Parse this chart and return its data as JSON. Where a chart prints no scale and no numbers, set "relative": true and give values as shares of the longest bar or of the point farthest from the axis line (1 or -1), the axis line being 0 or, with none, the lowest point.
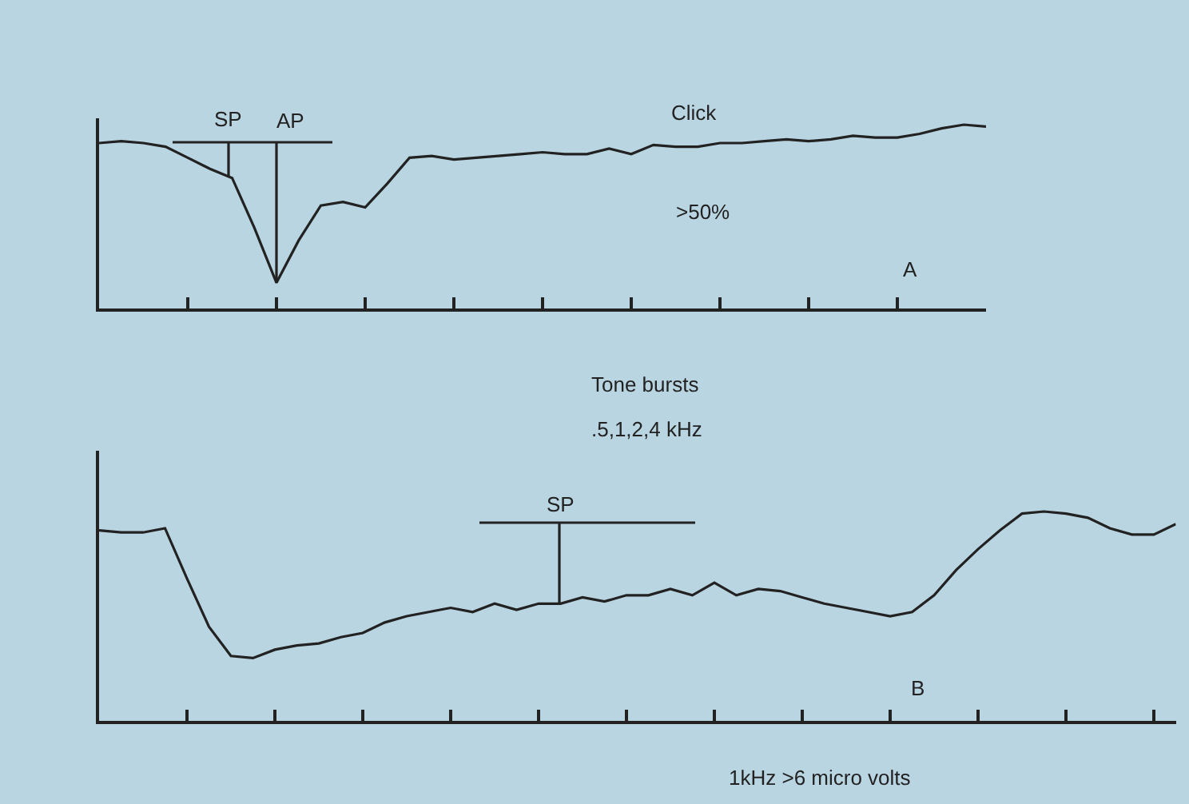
{
  "chart_data": [
    {
      "type": "line",
      "relative": true,
      "categories": [
        null,
        null,
        null,
        null,
        null,
        null,
        null,
        null,
        null,
        null,
        null,
        null,
        null,
        null,
        null,
        null,
        null,
        null,
        null,
        null,
        null,
        null,
        null,
        null,
        null,
        null,
        null,
        null,
        null,
        null,
        null,
        null,
        null,
        null,
        null,
        null,
        null,
        null,
        null,
        null,
        null
      ],
      "series": [
        {
          "color": "#222222",
          "values": [
            0.9,
            0.91,
            0.9,
            0.88,
            0.82,
            0.76,
            0.71,
            0.44,
            0.14,
            0.37,
            0.56,
            0.58,
            0.55,
            0.68,
            0.82,
            0.83,
            0.81,
            0.82,
            0.83,
            0.84,
            0.85,
            0.84,
            0.84,
            0.87,
            0.84,
            0.89,
            0.88,
            0.88,
            0.9,
            0.9,
            0.91,
            0.92,
            0.91,
            0.92,
            0.94,
            0.93,
            0.93,
            0.95,
            0.98,
            1.0,
            0.99
          ]
        }
      ],
      "annotations": [
        "SP",
        "AP",
        "Click",
        ">50%",
        "A"
      ],
      "grid": false
    },
    {
      "type": "line",
      "relative": true,
      "title": "Tone bursts",
      "subtitle": ".5,1,2,4 kHz",
      "categories": [
        null,
        null,
        null,
        null,
        null,
        null,
        null,
        null,
        null,
        null,
        null,
        null,
        null,
        null,
        null,
        null,
        null,
        null,
        null,
        null,
        null,
        null,
        null,
        null,
        null,
        null,
        null,
        null,
        null,
        null,
        null,
        null,
        null,
        null,
        null,
        null,
        null,
        null,
        null,
        null,
        null,
        null,
        null,
        null,
        null,
        null,
        null,
        null,
        null,
        null
      ],
      "series": [
        {
          "color": "#222222",
          "values": [
            0.91,
            0.9,
            0.9,
            0.92,
            0.68,
            0.45,
            0.31,
            0.3,
            0.34,
            0.36,
            0.37,
            0.4,
            0.42,
            0.47,
            0.5,
            0.52,
            0.54,
            0.52,
            0.56,
            0.53,
            0.56,
            0.56,
            0.59,
            0.57,
            0.6,
            0.6,
            0.63,
            0.6,
            0.66,
            0.6,
            0.63,
            0.62,
            0.59,
            0.56,
            0.54,
            0.52,
            0.5,
            0.52,
            0.6,
            0.72,
            0.82,
            0.91,
            0.99,
            1.0,
            0.99,
            0.97,
            0.92,
            0.89,
            0.89,
            0.94
          ]
        }
      ],
      "annotations": [
        "SP",
        "B",
        "1kHz >6 micro volts"
      ],
      "grid": false
    }
  ]
}
